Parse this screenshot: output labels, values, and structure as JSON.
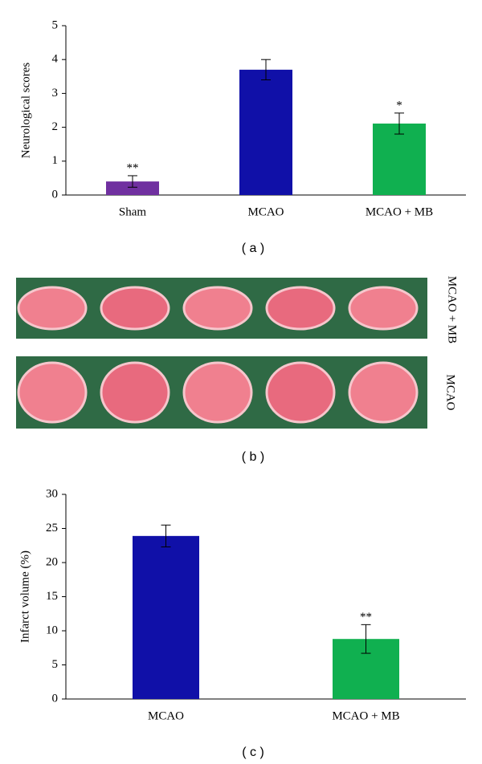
{
  "chart_data": [
    {
      "type": "bar",
      "ylabel": "Neurological scores",
      "categories": [
        "Sham",
        "MCAO",
        "MCAO + MB"
      ],
      "values": [
        0.4,
        3.7,
        2.11
      ],
      "errors": [
        0.17,
        0.3,
        0.31
      ],
      "colors": [
        "#7030a0",
        "#1010a8",
        "#10b050"
      ],
      "annotations": [
        "**",
        null,
        "*"
      ],
      "ylim": [
        0,
        5
      ],
      "yticks": [
        0,
        1,
        2,
        3,
        4,
        5
      ]
    },
    {
      "type": "bar",
      "ylabel": "Infarct volume (%)",
      "categories": [
        "MCAO",
        "MCAO + MB"
      ],
      "values": [
        23.9,
        8.8
      ],
      "errors": [
        1.6,
        2.1
      ],
      "colors": [
        "#1010a8",
        "#10b050"
      ],
      "annotations": [
        null,
        "**"
      ],
      "ylim": [
        0,
        30
      ],
      "yticks": [
        0,
        5,
        10,
        15,
        20,
        25,
        30
      ]
    }
  ],
  "panel_b": {
    "rows": [
      {
        "label": "MCAO + MB"
      },
      {
        "label": "MCAO"
      }
    ]
  },
  "captions": [
    "( a )",
    "( b )",
    "( c )"
  ]
}
